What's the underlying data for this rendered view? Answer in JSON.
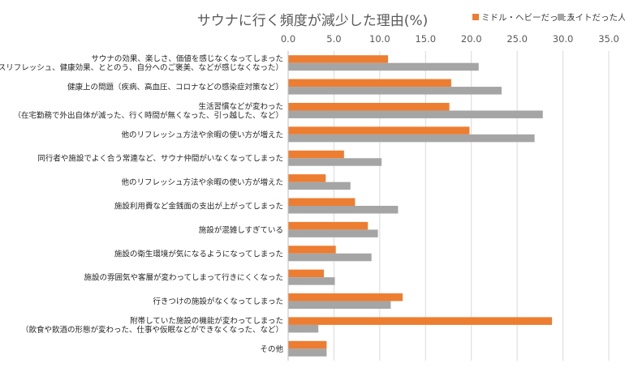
{
  "chart_data": {
    "type": "bar",
    "orientation": "horizontal",
    "title": "サウナに行く頻度が減少した理由(%)",
    "xlabel": "",
    "ylabel": "",
    "xlim": [
      0,
      35
    ],
    "xticks": [
      "0.0",
      "5.0",
      "10.0",
      "15.0",
      "20.0",
      "25.0",
      "30.0",
      "35.0"
    ],
    "grid": true,
    "legend_position": "top-right",
    "categories": [
      [
        "サウナの効果、楽しさ、価値を感じなくなってしまった",
        "（リラックスリフレッシュ、健康効果、ととのう、自分へのご褒美、などが感じなくなった）"
      ],
      [
        "健康上の問題（疾病、高血圧、コロナなどの感染症対策など）"
      ],
      [
        "生活習慣などが変わった",
        "（在宅勤務で外出自体が減った、行く時間が無くなった、引っ越した、など）"
      ],
      [
        "他のリフレッシュ方法や余暇の使い方が増えた"
      ],
      [
        "同行者や施設でよく合う常連など、サウナ仲間がいなくなってしまった"
      ],
      [
        "他のリフレッシュ方法や余暇の使い方が増えた"
      ],
      [
        "施設利用費など金銭面の支出が上がってしまった"
      ],
      [
        "施設が混雑しすぎている"
      ],
      [
        "施設の衛生環境が気になるようになってしまった"
      ],
      [
        "施設の雰囲気や客層が変わってしまって行きにくくなった"
      ],
      [
        "行きつけの施設がなくなってしまった"
      ],
      [
        "附帯していた施設の機能が変わってしまった",
        "（飲食や飲酒の形態が変わった、仕事や仮眠などができなくなった、など）"
      ],
      [
        "その他"
      ]
    ],
    "series": [
      {
        "name": "ミドル・ヘビーだった人",
        "color": "#ED7D31",
        "values": [
          10.9,
          17.8,
          17.6,
          19.8,
          6.1,
          4.1,
          7.3,
          8.7,
          5.2,
          3.9,
          12.5,
          28.8,
          4.2
        ]
      },
      {
        "name": "ライトだった人",
        "color": "#A5A5A5",
        "values": [
          20.8,
          23.3,
          27.8,
          26.9,
          10.2,
          6.8,
          12.0,
          9.8,
          9.1,
          5.1,
          11.2,
          3.3,
          4.2
        ]
      }
    ]
  }
}
